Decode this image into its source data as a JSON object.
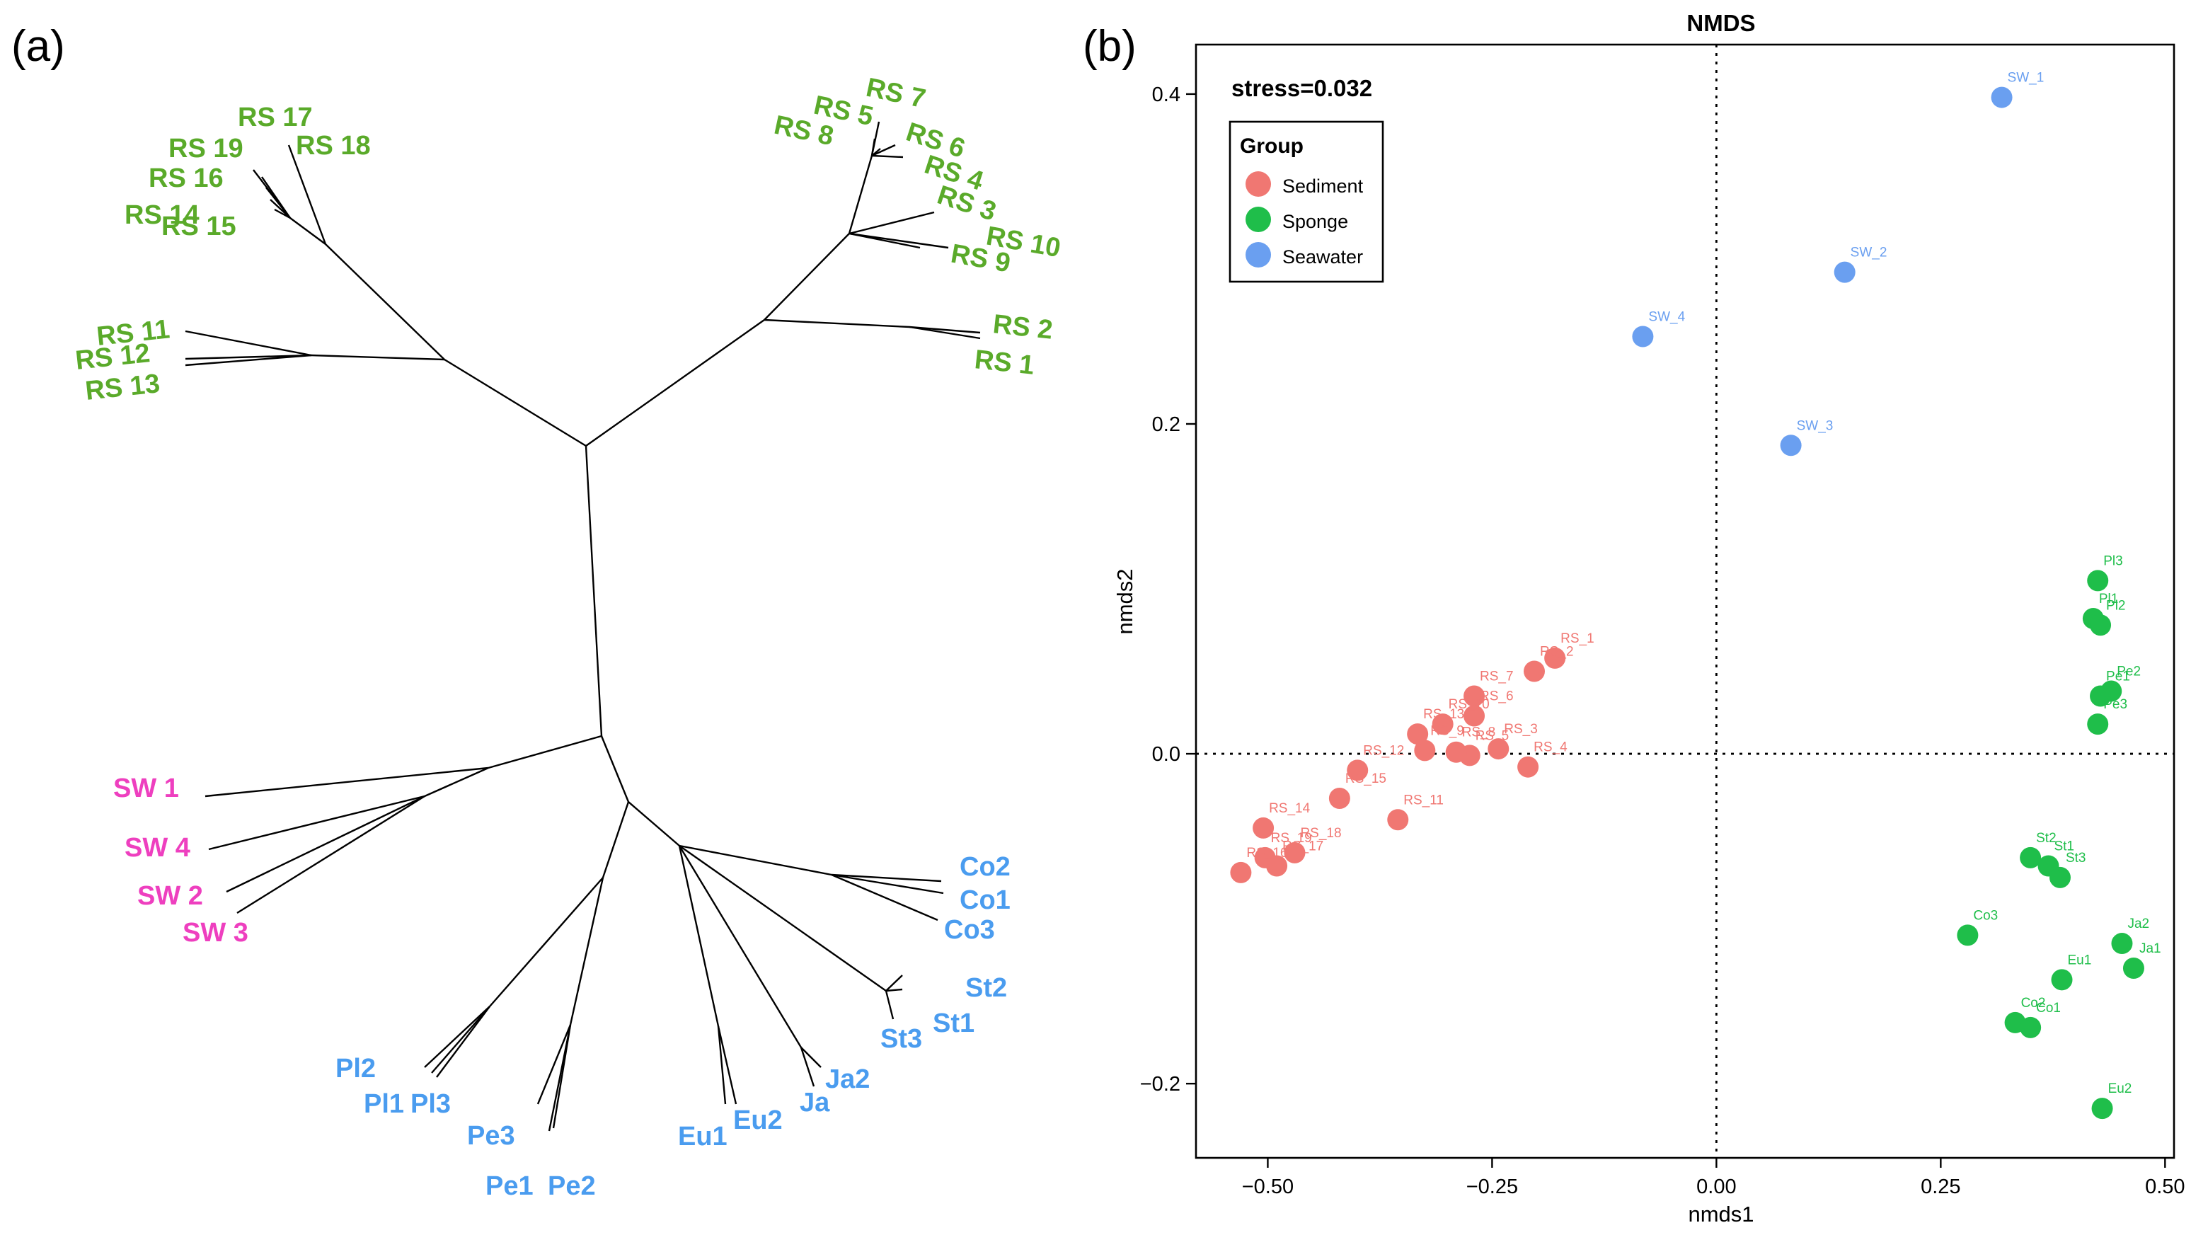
{
  "panel_labels": {
    "a": "(a)",
    "b": "(b)"
  },
  "colors": {
    "sediment": "#f07772",
    "sponge": "#1fbe4a",
    "seawater": "#6a9ff0",
    "tree_rs": "#5aaa2a",
    "tree_sw": "#ee3fbf",
    "tree_sp": "#4a9cef"
  },
  "tree_labels": {
    "rs": [
      "RS 17",
      "RS 19",
      "RS 18",
      "RS 16",
      "RS 14",
      "RS 15",
      "RS 7",
      "RS 5",
      "RS 8",
      "RS 6",
      "RS 4",
      "RS 3",
      "RS 10",
      "RS 9",
      "RS 11",
      "RS 12",
      "RS 13",
      "RS 2",
      "RS 1"
    ],
    "sw": [
      "SW 1",
      "SW 4",
      "SW 2",
      "SW 3"
    ],
    "sp": [
      "Co2",
      "Co1",
      "Co3",
      "St2",
      "St1",
      "St3",
      "Ja2",
      "Ja",
      "Eu2",
      "Eu1",
      "Pl2",
      "Pl1",
      "Pl3",
      "Pe3",
      "Pe1",
      "Pe2"
    ]
  },
  "chart_data": {
    "type": "scatter",
    "title": "NMDS",
    "xlabel": "nmds1",
    "ylabel": "nmds2",
    "xlim": [
      -0.58,
      0.51
    ],
    "ylim": [
      -0.245,
      0.43
    ],
    "xticks": [
      -0.5,
      -0.25,
      0.0,
      0.25,
      0.5
    ],
    "xtick_labels": [
      "−0.50",
      "−0.25",
      "0.00",
      "0.25",
      "0.50"
    ],
    "yticks": [
      -0.2,
      0.0,
      0.2,
      0.4
    ],
    "ytick_labels": [
      "−0.2",
      "0.0",
      "0.2",
      "0.4"
    ],
    "annotation": "stress=0.032",
    "legend": {
      "title": "Group",
      "position": "top-left",
      "entries": [
        "Sediment",
        "Sponge",
        "Seawater"
      ]
    },
    "series": [
      {
        "name": "Sediment",
        "points": [
          {
            "label": "RS_1",
            "x": -0.18,
            "y": 0.058
          },
          {
            "label": "RS_2",
            "x": -0.203,
            "y": 0.05
          },
          {
            "label": "RS_7",
            "x": -0.27,
            "y": 0.035
          },
          {
            "label": "RS_6",
            "x": -0.27,
            "y": 0.023
          },
          {
            "label": "RS_10",
            "x": -0.305,
            "y": 0.018
          },
          {
            "label": "RS_3",
            "x": -0.243,
            "y": 0.003
          },
          {
            "label": "RS_5",
            "x": -0.275,
            "y": -0.001
          },
          {
            "label": "RS_8",
            "x": -0.29,
            "y": 0.001
          },
          {
            "label": "RS_9",
            "x": -0.325,
            "y": 0.002
          },
          {
            "label": "RS_4",
            "x": -0.21,
            "y": -0.008
          },
          {
            "label": "RS_13",
            "x": -0.333,
            "y": 0.012
          },
          {
            "label": "RS_12",
            "x": -0.4,
            "y": -0.01
          },
          {
            "label": "RS_11",
            "x": -0.355,
            "y": -0.04
          },
          {
            "label": "RS_14",
            "x": -0.505,
            "y": -0.045
          },
          {
            "label": "RS_15",
            "x": -0.42,
            "y": -0.027
          },
          {
            "label": "RS_18",
            "x": -0.47,
            "y": -0.06
          },
          {
            "label": "RS_17",
            "x": -0.49,
            "y": -0.068
          },
          {
            "label": "RS_19",
            "x": -0.503,
            "y": -0.063
          },
          {
            "label": "RS_16",
            "x": -0.53,
            "y": -0.072
          }
        ]
      },
      {
        "name": "Sponge",
        "points": [
          {
            "label": "Pl3",
            "x": 0.425,
            "y": 0.105
          },
          {
            "label": "Pl1",
            "x": 0.42,
            "y": 0.082
          },
          {
            "label": "Pl2",
            "x": 0.428,
            "y": 0.078
          },
          {
            "label": "Pe2",
            "x": 0.44,
            "y": 0.038
          },
          {
            "label": "Pe1",
            "x": 0.428,
            "y": 0.035
          },
          {
            "label": "Pe3",
            "x": 0.425,
            "y": 0.018
          },
          {
            "label": "St2",
            "x": 0.35,
            "y": -0.063
          },
          {
            "label": "St1",
            "x": 0.37,
            "y": -0.068
          },
          {
            "label": "St3",
            "x": 0.383,
            "y": -0.075
          },
          {
            "label": "Co3",
            "x": 0.28,
            "y": -0.11
          },
          {
            "label": "Ja2",
            "x": 0.452,
            "y": -0.115
          },
          {
            "label": "Ja1",
            "x": 0.465,
            "y": -0.13
          },
          {
            "label": "Eu1",
            "x": 0.385,
            "y": -0.137
          },
          {
            "label": "Co2",
            "x": 0.333,
            "y": -0.163
          },
          {
            "label": "Co1",
            "x": 0.35,
            "y": -0.166
          },
          {
            "label": "Eu2",
            "x": 0.43,
            "y": -0.215
          }
        ]
      },
      {
        "name": "Seawater",
        "points": [
          {
            "label": "SW_1",
            "x": 0.318,
            "y": 0.398
          },
          {
            "label": "SW_2",
            "x": 0.143,
            "y": 0.292
          },
          {
            "label": "SW_4",
            "x": -0.082,
            "y": 0.253
          },
          {
            "label": "SW_3",
            "x": 0.083,
            "y": 0.187
          }
        ]
      }
    ]
  }
}
